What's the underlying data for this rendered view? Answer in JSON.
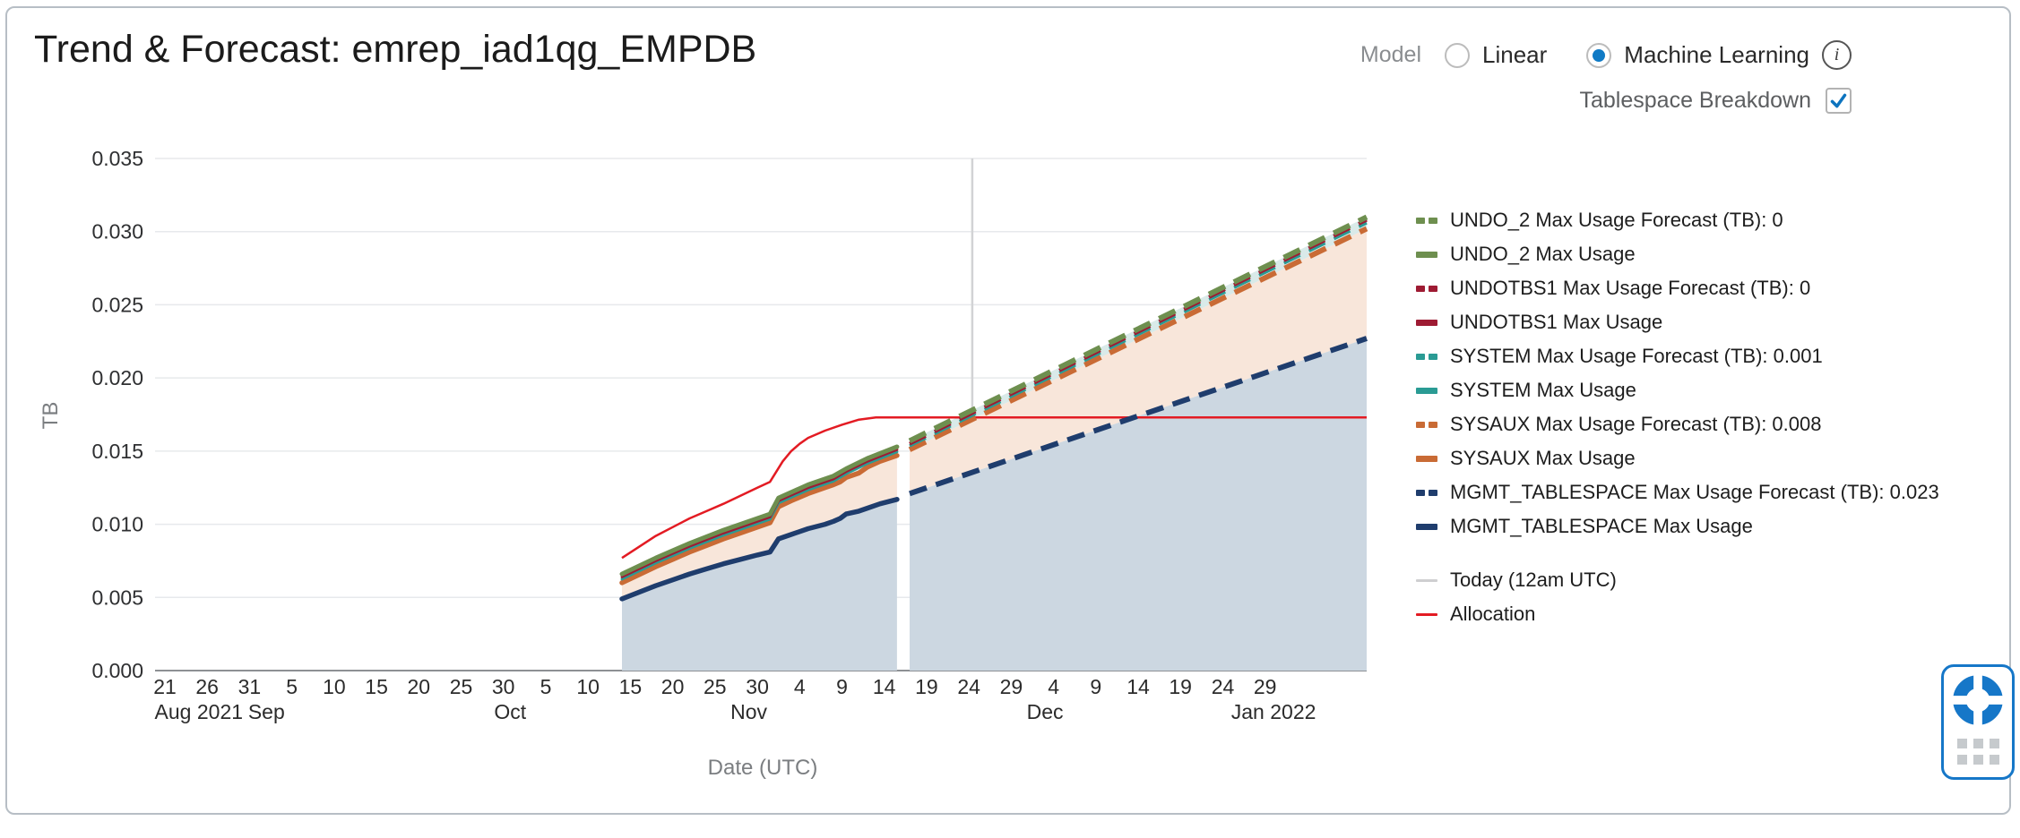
{
  "card": {
    "title": "Trend & Forecast: emrep_iad1qg_EMPDB"
  },
  "controls": {
    "model_label": "Model",
    "options": [
      {
        "label": "Linear",
        "selected": false
      },
      {
        "label": "Machine Learning",
        "selected": true
      }
    ],
    "info_icon": "i",
    "breakdown_label": "Tablespace Breakdown",
    "breakdown_checked": true
  },
  "chart_data": {
    "type": "area",
    "title": "Trend & Forecast: emrep_iad1qg_EMPDB",
    "xlabel": "Date (UTC)",
    "ylabel": "TB",
    "ylim": [
      0,
      0.035
    ],
    "grid": true,
    "legend_position": "right",
    "y_ticks": [
      {
        "v": 0.0,
        "label": "0.000"
      },
      {
        "v": 0.005,
        "label": "0.005"
      },
      {
        "v": 0.01,
        "label": "0.010"
      },
      {
        "v": 0.015,
        "label": "0.015"
      },
      {
        "v": 0.02,
        "label": "0.020"
      },
      {
        "v": 0.025,
        "label": "0.025"
      },
      {
        "v": 0.03,
        "label": "0.030"
      },
      {
        "v": 0.035,
        "label": "0.035"
      }
    ],
    "x_ticks": [
      {
        "t": 0,
        "label": "21"
      },
      {
        "t": 5,
        "label": "26"
      },
      {
        "t": 10,
        "label": "31"
      },
      {
        "t": 15,
        "label": "5"
      },
      {
        "t": 20,
        "label": "10"
      },
      {
        "t": 25,
        "label": "15"
      },
      {
        "t": 30,
        "label": "20"
      },
      {
        "t": 35,
        "label": "25"
      },
      {
        "t": 40,
        "label": "30"
      },
      {
        "t": 45,
        "label": "5"
      },
      {
        "t": 50,
        "label": "10"
      },
      {
        "t": 55,
        "label": "15"
      },
      {
        "t": 60,
        "label": "20"
      },
      {
        "t": 65,
        "label": "25"
      },
      {
        "t": 70,
        "label": "30"
      },
      {
        "t": 75,
        "label": "4"
      },
      {
        "t": 80,
        "label": "9"
      },
      {
        "t": 85,
        "label": "14"
      },
      {
        "t": 90,
        "label": "19"
      },
      {
        "t": 95,
        "label": "24"
      },
      {
        "t": 100,
        "label": "29"
      },
      {
        "t": 105,
        "label": "4"
      },
      {
        "t": 110,
        "label": "9"
      },
      {
        "t": 115,
        "label": "14"
      },
      {
        "t": 120,
        "label": "19"
      },
      {
        "t": 125,
        "label": "24"
      },
      {
        "t": 130,
        "label": "29"
      }
    ],
    "month_labels": [
      {
        "t": 4,
        "label": "Aug 2021"
      },
      {
        "t": 12,
        "label": "Sep"
      },
      {
        "t": 40.8,
        "label": "Oct"
      },
      {
        "t": 69,
        "label": "Nov"
      },
      {
        "t": 104,
        "label": "Dec"
      },
      {
        "t": 131,
        "label": "Jan 2022"
      }
    ],
    "today_t": 95.4,
    "today_label": "Today (12am UTC)",
    "colors": {
      "undo2": "#6e8f4f",
      "undotbs1": "#9e1b33",
      "system": "#2a9b94",
      "sysaux": "#c96b35",
      "mgmt": "#1f3d6d",
      "allocation": "#e31b23",
      "today": "#d2d3d5",
      "fill_mgmt": "#ccd7e1",
      "fill_sysaux": "#f8e6da",
      "fill_system": "#d9eae9"
    },
    "series": {
      "mgmt_hist": [
        [
          54,
          0.0049
        ],
        [
          56,
          0.00535
        ],
        [
          58,
          0.0058
        ],
        [
          60,
          0.0062
        ],
        [
          62,
          0.0066
        ],
        [
          64,
          0.00695
        ],
        [
          66,
          0.0073
        ],
        [
          68,
          0.0076
        ],
        [
          70,
          0.0079
        ],
        [
          71.5,
          0.0081
        ],
        [
          72.5,
          0.009
        ],
        [
          74,
          0.0093
        ],
        [
          76,
          0.0097
        ],
        [
          78,
          0.01
        ],
        [
          79,
          0.0102
        ],
        [
          79.8,
          0.0104
        ],
        [
          80.5,
          0.0107
        ],
        [
          82,
          0.0109
        ],
        [
          83,
          0.0111
        ],
        [
          84.5,
          0.0114
        ],
        [
          86.5,
          0.0117
        ]
      ],
      "sysaux_hist": [
        [
          54,
          0.006
        ],
        [
          56,
          0.00655
        ],
        [
          58,
          0.0071
        ],
        [
          60,
          0.0076
        ],
        [
          62,
          0.0081
        ],
        [
          64,
          0.00855
        ],
        [
          66,
          0.009
        ],
        [
          68,
          0.0094
        ],
        [
          70,
          0.0098
        ],
        [
          71.5,
          0.0101
        ],
        [
          72.5,
          0.0112
        ],
        [
          74,
          0.0116
        ],
        [
          76,
          0.0121
        ],
        [
          78,
          0.0125
        ],
        [
          79,
          0.0127
        ],
        [
          79.8,
          0.0129
        ],
        [
          80.5,
          0.0132
        ],
        [
          82,
          0.0135
        ],
        [
          83,
          0.0139
        ],
        [
          84.5,
          0.0143
        ],
        [
          86.5,
          0.0147
        ]
      ],
      "system_hist": [
        [
          54,
          0.00625
        ],
        [
          58,
          0.00735
        ],
        [
          62,
          0.00835
        ],
        [
          66,
          0.00925
        ],
        [
          70,
          0.01005
        ],
        [
          71.5,
          0.01035
        ],
        [
          72.5,
          0.01145
        ],
        [
          76,
          0.01235
        ],
        [
          79,
          0.01295
        ],
        [
          80.5,
          0.01345
        ],
        [
          83,
          0.01415
        ],
        [
          86.5,
          0.01495
        ]
      ],
      "undotbs1_hist": [
        [
          54,
          0.0064
        ],
        [
          58,
          0.0075
        ],
        [
          62,
          0.0085
        ],
        [
          66,
          0.0094
        ],
        [
          70,
          0.0102
        ],
        [
          71.5,
          0.0105
        ],
        [
          72.5,
          0.0116
        ],
        [
          76,
          0.0125
        ],
        [
          79,
          0.0131
        ],
        [
          80.5,
          0.0136
        ],
        [
          83,
          0.0143
        ],
        [
          86.5,
          0.0151
        ]
      ],
      "undo2_hist": [
        [
          54,
          0.0066
        ],
        [
          58,
          0.0077
        ],
        [
          62,
          0.0087
        ],
        [
          66,
          0.0096
        ],
        [
          70,
          0.0104
        ],
        [
          71.5,
          0.0107
        ],
        [
          72.5,
          0.0118
        ],
        [
          76,
          0.0127
        ],
        [
          79,
          0.0133
        ],
        [
          80.5,
          0.0138
        ],
        [
          83,
          0.0145
        ],
        [
          86.5,
          0.0153
        ]
      ],
      "mgmt_fc": [
        [
          88,
          0.0121
        ],
        [
          142,
          0.0227
        ]
      ],
      "sysaux_fc": [
        [
          88,
          0.0151
        ],
        [
          142,
          0.0302
        ]
      ],
      "system_fc": [
        [
          88,
          0.01535
        ],
        [
          142,
          0.0306
        ]
      ],
      "undotbs1_fc": [
        [
          88,
          0.0155
        ],
        [
          142,
          0.0308
        ]
      ],
      "undo2_fc": [
        [
          88,
          0.0157
        ],
        [
          142,
          0.031
        ]
      ],
      "allocation": [
        [
          54,
          0.0077
        ],
        [
          56,
          0.00845
        ],
        [
          58,
          0.0092
        ],
        [
          60,
          0.0098
        ],
        [
          62,
          0.0104
        ],
        [
          64,
          0.0109
        ],
        [
          66,
          0.0114
        ],
        [
          68,
          0.01195
        ],
        [
          70,
          0.0125
        ],
        [
          71.5,
          0.0129
        ],
        [
          73,
          0.0143
        ],
        [
          74,
          0.015
        ],
        [
          75,
          0.0155
        ],
        [
          76,
          0.0159
        ],
        [
          78,
          0.0164
        ],
        [
          80,
          0.0168
        ],
        [
          82,
          0.01715
        ],
        [
          84,
          0.0173
        ],
        [
          142,
          0.0173
        ]
      ]
    },
    "bands": [
      {
        "upper": "mgmt_hist",
        "lower": null,
        "color": "#ccd7e1"
      },
      {
        "upper": "mgmt_fc",
        "lower": null,
        "color": "#ccd7e1"
      },
      {
        "upper": "sysaux_hist",
        "lower": "mgmt_hist",
        "color": "#f8e6da"
      },
      {
        "upper": "sysaux_fc",
        "lower": "mgmt_fc",
        "color": "#f8e6da"
      },
      {
        "upper": "undo2_hist",
        "lower": "sysaux_hist",
        "color": "#d9eae9"
      },
      {
        "upper": "undo2_fc",
        "lower": "sysaux_fc",
        "color": "#d9eae9"
      }
    ],
    "lines": [
      {
        "s": "mgmt_hist",
        "color": "#1f3d6d",
        "w": 5.5
      },
      {
        "s": "sysaux_hist",
        "color": "#c96b35",
        "w": 5.5
      },
      {
        "s": "system_hist",
        "color": "#2a9b94",
        "w": 3
      },
      {
        "s": "undotbs1_hist",
        "color": "#9e1b33",
        "w": 3
      },
      {
        "s": "undo2_hist",
        "color": "#6e8f4f",
        "w": 5
      },
      {
        "s": "mgmt_fc",
        "color": "#1f3d6d",
        "w": 6,
        "dash": "20 11"
      },
      {
        "s": "sysaux_fc",
        "color": "#c96b35",
        "w": 6,
        "dash": "20 11"
      },
      {
        "s": "system_fc",
        "color": "#2a9b94",
        "w": 3.5,
        "dash": "20 11"
      },
      {
        "s": "undotbs1_fc",
        "color": "#9e1b33",
        "w": 4,
        "dash": "20 11"
      },
      {
        "s": "undo2_fc",
        "color": "#6e8f4f",
        "w": 6,
        "dash": "20 11"
      }
    ],
    "legend": [
      {
        "type": "dashed",
        "color": "#6e8f4f",
        "label": "UNDO_2 Max Usage Forecast (TB): 0"
      },
      {
        "type": "solid",
        "color": "#6e8f4f",
        "label": "UNDO_2 Max Usage"
      },
      {
        "type": "dashed",
        "color": "#9e1b33",
        "label": "UNDOTBS1 Max Usage Forecast (TB): 0"
      },
      {
        "type": "solid",
        "color": "#9e1b33",
        "label": "UNDOTBS1 Max Usage"
      },
      {
        "type": "dashed",
        "color": "#2a9b94",
        "label": "SYSTEM Max Usage Forecast (TB): 0.001"
      },
      {
        "type": "solid",
        "color": "#2a9b94",
        "label": "SYSTEM Max Usage"
      },
      {
        "type": "dashed",
        "color": "#c96b35",
        "label": "SYSAUX Max Usage Forecast (TB): 0.008"
      },
      {
        "type": "solid",
        "color": "#c96b35",
        "label": "SYSAUX Max Usage"
      },
      {
        "type": "dashed",
        "color": "#1f3d6d",
        "label": "MGMT_TABLESPACE Max Usage Forecast (TB): 0.023"
      },
      {
        "type": "solid",
        "color": "#1f3d6d",
        "label": "MGMT_TABLESPACE Max Usage"
      },
      {
        "type": "thin",
        "color": "#cfcfd1",
        "label": "Today (12am UTC)",
        "gap": true
      },
      {
        "type": "thin",
        "color": "#e31b23",
        "label": "Allocation"
      }
    ]
  }
}
